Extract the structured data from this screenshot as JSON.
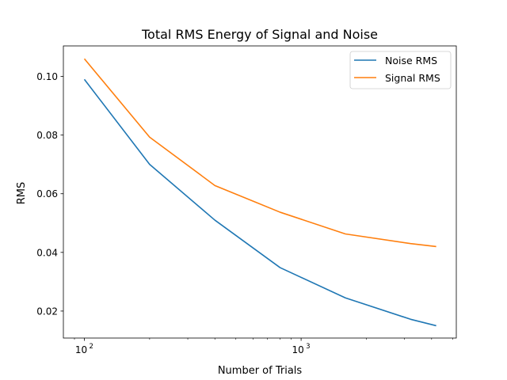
{
  "chart_data": {
    "type": "line",
    "title": "Total RMS Energy of Signal and Noise",
    "xlabel": "Number of Trials",
    "ylabel": "RMS",
    "xscale": "log",
    "x": [
      100,
      200,
      400,
      800,
      1600,
      3200,
      4200
    ],
    "xlim": [
      80,
      5200
    ],
    "ylim": [
      0.0108,
      0.1104
    ],
    "xticks": [
      {
        "value": 100,
        "base": "10",
        "exp": "2"
      },
      {
        "value": 1000,
        "base": "10",
        "exp": "3"
      }
    ],
    "yticks": [
      {
        "value": 0.02,
        "label": "0.02"
      },
      {
        "value": 0.04,
        "label": "0.04"
      },
      {
        "value": 0.06,
        "label": "0.06"
      },
      {
        "value": 0.08,
        "label": "0.08"
      },
      {
        "value": 0.1,
        "label": "0.10"
      }
    ],
    "grid": false,
    "legend": "top-right",
    "series": [
      {
        "name": "Noise RMS",
        "color": "#1f77b4",
        "values": [
          0.099,
          0.07,
          0.051,
          0.0348,
          0.0245,
          0.0172,
          0.015
        ]
      },
      {
        "name": "Signal RMS",
        "color": "#ff7f0e",
        "values": [
          0.106,
          0.0793,
          0.0628,
          0.0537,
          0.0463,
          0.043,
          0.042
        ]
      }
    ]
  }
}
